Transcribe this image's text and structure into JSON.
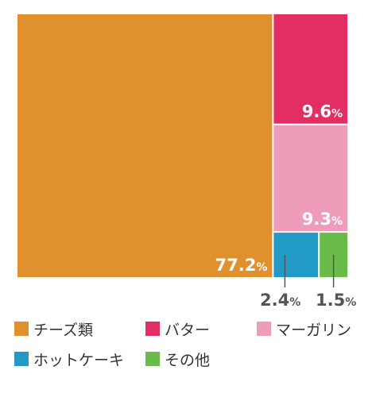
{
  "chart_data": {
    "type": "treemap",
    "unit": "%",
    "series": [
      {
        "name": "チーズ類",
        "value": 77.2,
        "label": "77.2",
        "color": "#E0902C"
      },
      {
        "name": "バター",
        "value": 9.6,
        "label": "9.6",
        "color": "#E32E63"
      },
      {
        "name": "マーガリン",
        "value": 9.3,
        "label": "9.3",
        "color": "#EF9CBB"
      },
      {
        "name": "ホットケーキ",
        "value": 2.4,
        "label": "2.4",
        "color": "#219BC6"
      },
      {
        "name": "その他",
        "value": 1.5,
        "label": "1.5",
        "color": "#6ABB4A"
      }
    ]
  }
}
